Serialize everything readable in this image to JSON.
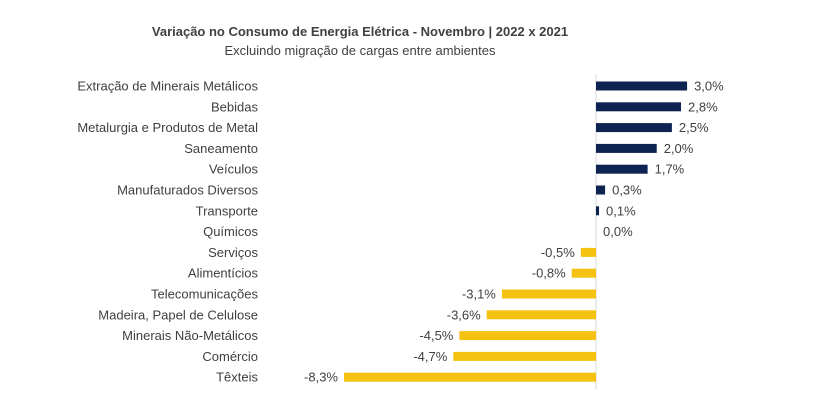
{
  "chart_data": {
    "type": "bar",
    "orientation": "horizontal",
    "title": "Variação no Consumo de Energia Elétrica -  Novembro | 2022 x 2021",
    "subtitle": "Excluindo migração de cargas entre ambientes",
    "categories": [
      "Extração de Minerais Metálicos",
      "Bebidas",
      "Metalurgia e Produtos de Metal",
      "Saneamento",
      "Veículos",
      "Manufaturados Diversos",
      "Transporte",
      "Químicos",
      "Serviços",
      "Alimentícios",
      "Telecomunicações",
      "Madeira, Papel de Celulose",
      "Minerais Não-Metálicos",
      "Comércio",
      "Têxteis"
    ],
    "values": [
      3.0,
      2.8,
      2.5,
      2.0,
      1.7,
      0.3,
      0.1,
      0.0,
      -0.5,
      -0.8,
      -3.1,
      -3.6,
      -4.5,
      -4.7,
      -8.3
    ],
    "value_labels": [
      "3,0%",
      "2,8%",
      "2,5%",
      "2,0%",
      "1,7%",
      "0,3%",
      "0,1%",
      "0,0%",
      "-0,5%",
      "-0,8%",
      "-3,1%",
      "-3,6%",
      "-4,5%",
      "-4,7%",
      "-8,3%"
    ],
    "unit": "%",
    "xlim": [
      -8.3,
      3.0
    ],
    "grid": false,
    "legend": "none",
    "colors": {
      "positive": "#0D2352",
      "negative": "#F5C211",
      "axis": "#D9D9D9",
      "text": "#404040"
    }
  }
}
